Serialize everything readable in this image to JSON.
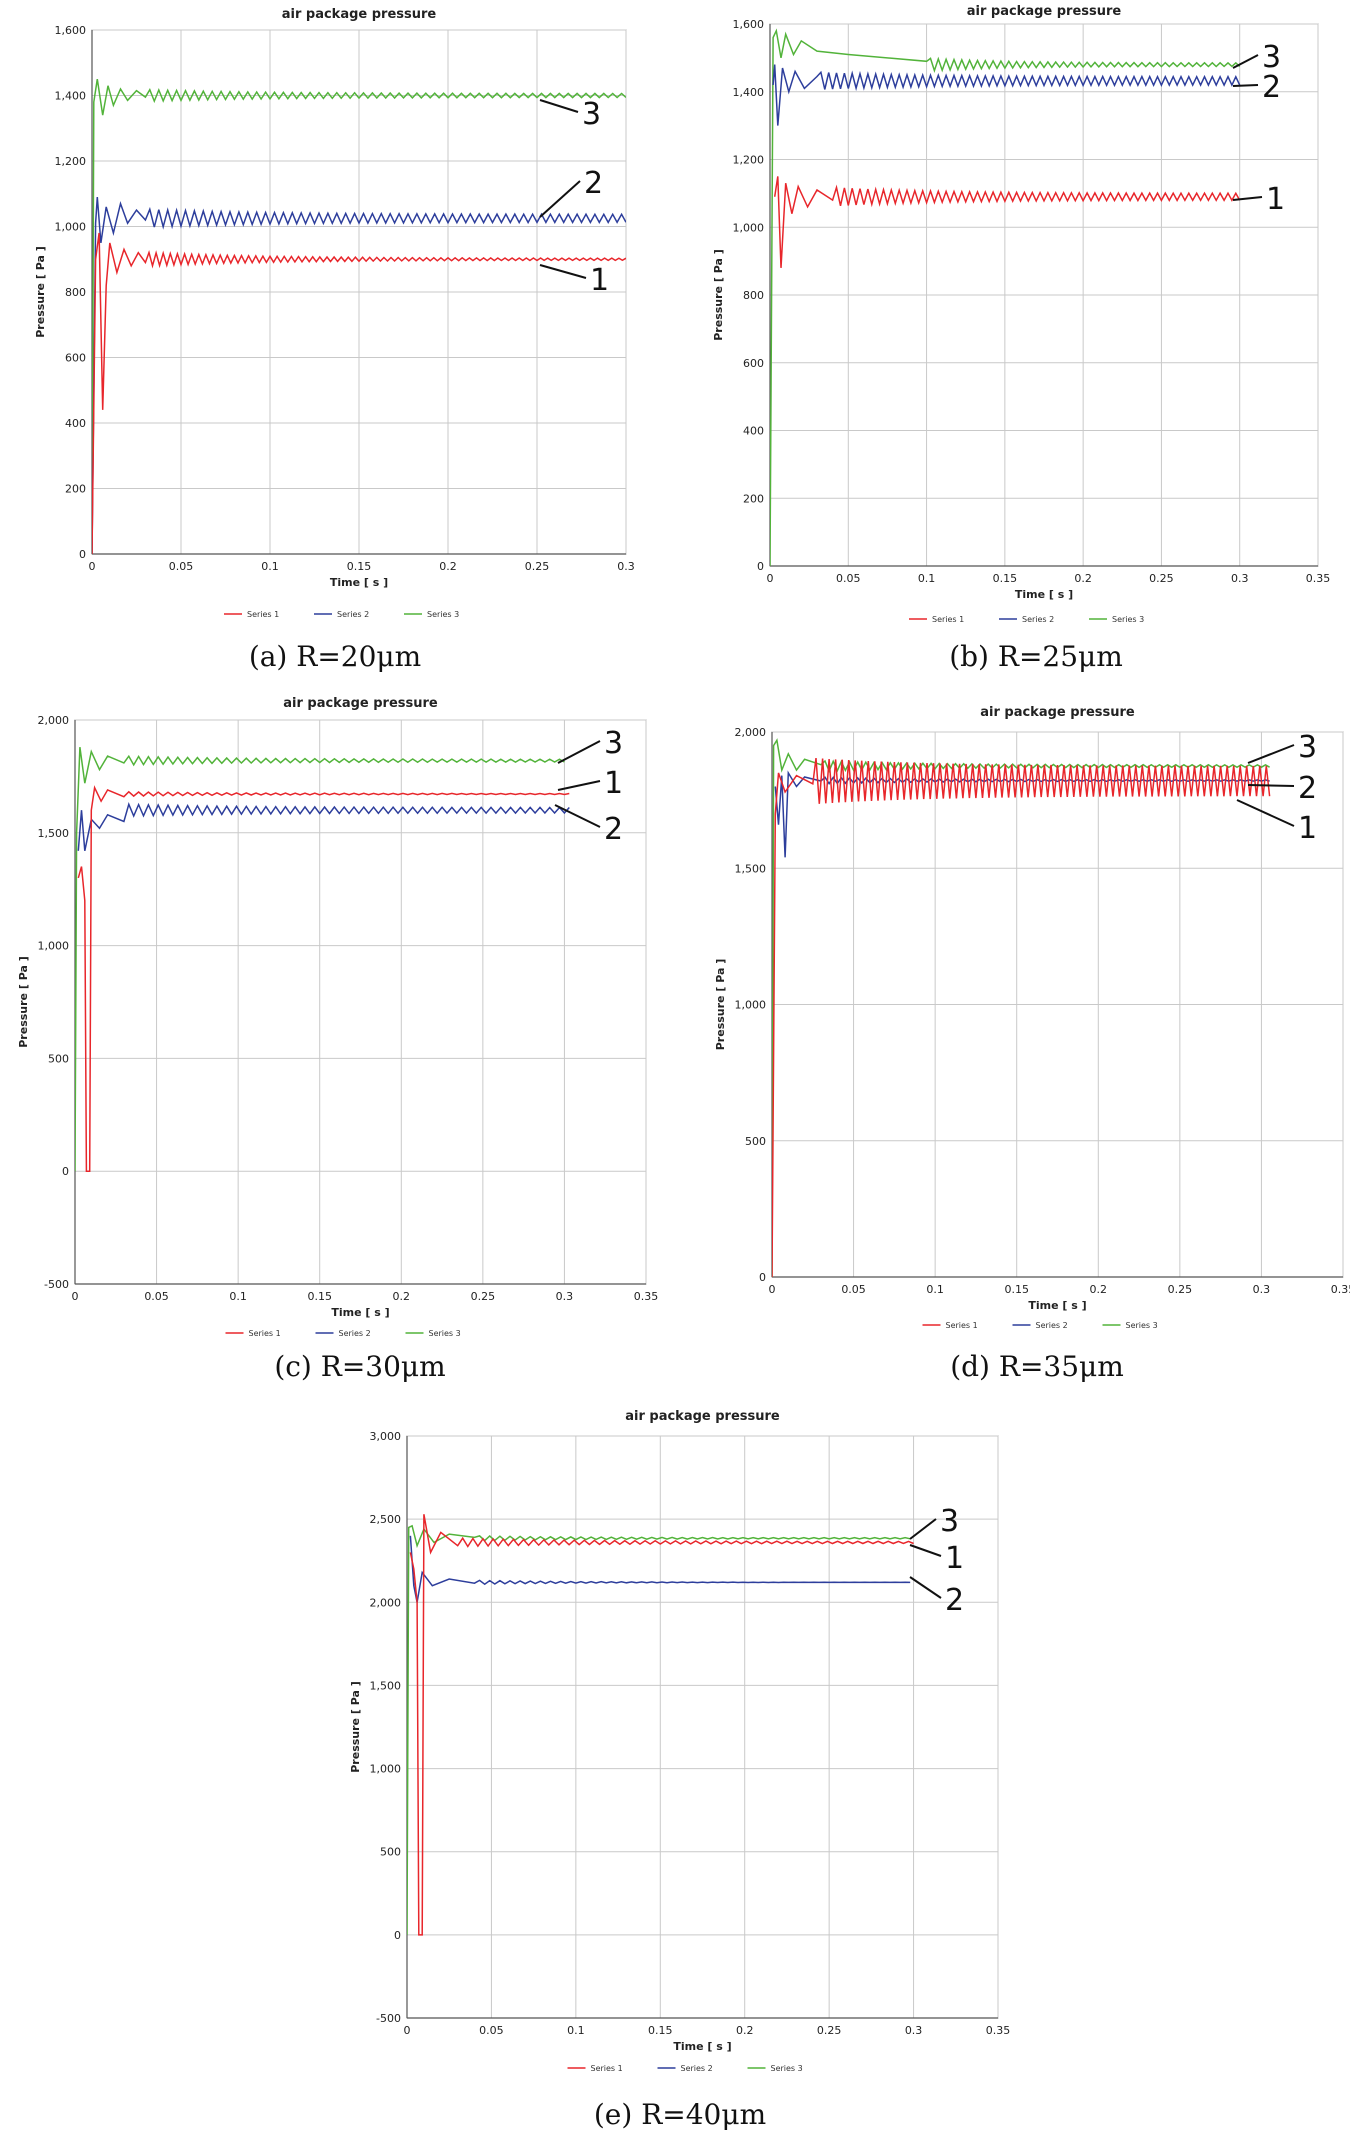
{
  "chart_data": [
    {
      "type": "line",
      "panel": "a",
      "title": "air package pressure",
      "xlabel": "Time [ s ]",
      "ylabel": "Pressure [ Pa ]",
      "xlim": [
        0,
        0.3
      ],
      "ylim": [
        0,
        1600
      ],
      "xticks": [
        0,
        0.05,
        0.1,
        0.15,
        0.2,
        0.25,
        0.3
      ],
      "xtick_labels": [
        "0",
        "0.05",
        "0.1",
        "0.15",
        "0.2",
        "0.25",
        "0.3"
      ],
      "yticks": [
        0,
        200,
        400,
        600,
        800,
        1000,
        1200,
        1400,
        1600
      ],
      "ytick_labels": [
        "0",
        "200",
        "400",
        "600",
        "800",
        "1,000",
        "1,200",
        "1,400",
        "1,600"
      ],
      "caption": "(a) R=20μm",
      "series": [
        {
          "name": "Series 1",
          "color": "#e8262b",
          "callout": "1",
          "steady": 900,
          "x_end": 0.3,
          "points": [
            [
              0,
              0
            ],
            [
              0.002,
              900
            ],
            [
              0.004,
              980
            ],
            [
              0.006,
              440
            ],
            [
              0.008,
              820
            ],
            [
              0.01,
              950
            ],
            [
              0.014,
              860
            ],
            [
              0.018,
              930
            ],
            [
              0.022,
              880
            ],
            [
              0.026,
              920
            ],
            [
              0.03,
              890
            ]
          ],
          "osc": {
            "amp0": 18,
            "amp1": 3,
            "period": 0.004
          }
        },
        {
          "name": "Series 2",
          "color": "#2d3e9c",
          "callout": "2",
          "steady": 1025,
          "x_end": 0.3,
          "points": [
            [
              0,
              0
            ],
            [
              0.002,
              1010
            ],
            [
              0.003,
              1090
            ],
            [
              0.005,
              950
            ],
            [
              0.008,
              1060
            ],
            [
              0.012,
              980
            ],
            [
              0.016,
              1070
            ],
            [
              0.02,
              1010
            ],
            [
              0.025,
              1050
            ],
            [
              0.03,
              1020
            ]
          ],
          "osc": {
            "amp0": 16,
            "amp1": 12,
            "period": 0.005
          }
        },
        {
          "name": "Series 3",
          "color": "#52b33a",
          "callout": "3",
          "steady": 1400,
          "x_end": 0.3,
          "points": [
            [
              0,
              0
            ],
            [
              0.001,
              1380
            ],
            [
              0.003,
              1450
            ],
            [
              0.006,
              1340
            ],
            [
              0.009,
              1430
            ],
            [
              0.012,
              1370
            ],
            [
              0.016,
              1420
            ],
            [
              0.02,
              1385
            ],
            [
              0.025,
              1415
            ],
            [
              0.03,
              1395
            ]
          ],
          "osc": {
            "amp0": 12,
            "amp1": 6,
            "period": 0.005
          }
        }
      ],
      "legend": [
        "Series 1",
        "Series 2",
        "Series 3"
      ]
    },
    {
      "type": "line",
      "panel": "b",
      "title": "air package pressure",
      "xlabel": "Time [ s ]",
      "ylabel": "Pressure [ Pa ]",
      "xlim": [
        0,
        0.35
      ],
      "ylim": [
        0,
        1600
      ],
      "xticks": [
        0,
        0.05,
        0.1,
        0.15,
        0.2,
        0.25,
        0.3,
        0.35
      ],
      "xtick_labels": [
        "0",
        "0.05",
        "0.1",
        "0.15",
        "0.2",
        "0.25",
        "0.3",
        "0.35"
      ],
      "yticks": [
        0,
        200,
        400,
        600,
        800,
        1000,
        1200,
        1400,
        1600
      ],
      "ytick_labels": [
        "0",
        "200",
        "400",
        "600",
        "800",
        "1,000",
        "1,200",
        "1,400",
        "1,600"
      ],
      "caption": "(b) R=25μm",
      "series": [
        {
          "name": "Series 1",
          "color": "#e8262b",
          "callout": "1",
          "steady": 1090,
          "x_end": 0.3,
          "points": [
            [
              0.003,
              1090
            ],
            [
              0.005,
              1150
            ],
            [
              0.007,
              880
            ],
            [
              0.01,
              1130
            ],
            [
              0.014,
              1040
            ],
            [
              0.018,
              1120
            ],
            [
              0.024,
              1060
            ],
            [
              0.03,
              1110
            ],
            [
              0.04,
              1080
            ]
          ],
          "osc": {
            "amp0": 18,
            "amp1": 10,
            "period": 0.005
          }
        },
        {
          "name": "Series 2",
          "color": "#2d3e9c",
          "callout": "2",
          "steady": 1432,
          "x_end": 0.3,
          "points": [
            [
              0.002,
              1420
            ],
            [
              0.003,
              1480
            ],
            [
              0.005,
              1300
            ],
            [
              0.008,
              1470
            ],
            [
              0.012,
              1400
            ],
            [
              0.016,
              1460
            ],
            [
              0.022,
              1410
            ],
            [
              0.03,
              1445
            ]
          ],
          "osc": {
            "amp0": 14,
            "amp1": 12,
            "period": 0.005
          }
        },
        {
          "name": "Series 3",
          "color": "#52b33a",
          "callout": "3",
          "steady": 1480,
          "x_end": 0.3,
          "points": [
            [
              0,
              0
            ],
            [
              0.002,
              1560
            ],
            [
              0.004,
              1580
            ],
            [
              0.007,
              1500
            ],
            [
              0.01,
              1570
            ],
            [
              0.015,
              1510
            ],
            [
              0.02,
              1550
            ],
            [
              0.03,
              1520
            ],
            [
              0.05,
              1510
            ],
            [
              0.1,
              1490
            ]
          ],
          "osc": {
            "amp0": 14,
            "amp1": 5,
            "period": 0.005
          }
        }
      ],
      "legend": [
        "Series 1",
        "Series 2",
        "Series 3"
      ]
    },
    {
      "type": "line",
      "panel": "c",
      "title": "air package pressure",
      "xlabel": "Time [ s ]",
      "ylabel": "Pressure [ Pa ]",
      "xlim": [
        0,
        0.35
      ],
      "ylim": [
        -500,
        2000
      ],
      "xticks": [
        0,
        0.05,
        0.1,
        0.15,
        0.2,
        0.25,
        0.3,
        0.35
      ],
      "xtick_labels": [
        "0",
        "0.05",
        "0.1",
        "0.15",
        "0.2",
        "0.25",
        "0.3",
        "0.35"
      ],
      "yticks": [
        -500,
        0,
        500,
        1000,
        1500,
        2000
      ],
      "ytick_labels": [
        "-500",
        "0",
        "500",
        "1,000",
        "1,500",
        "2,000"
      ],
      "caption": "(c) R=30μm",
      "series": [
        {
          "name": "Series 1",
          "color": "#e8262b",
          "callout": "1",
          "steady": 1672,
          "x_end": 0.305,
          "points": [
            [
              0.002,
              1300
            ],
            [
              0.004,
              1350
            ],
            [
              0.006,
              1200
            ],
            [
              0.007,
              0
            ],
            [
              0.009,
              0
            ],
            [
              0.01,
              1600
            ],
            [
              0.012,
              1700
            ],
            [
              0.016,
              1640
            ],
            [
              0.02,
              1690
            ],
            [
              0.03,
              1660
            ]
          ],
          "osc": {
            "amp0": 8,
            "amp1": 2,
            "period": 0.006
          }
        },
        {
          "name": "Series 2",
          "color": "#2d3e9c",
          "callout": "2",
          "steady": 1600,
          "x_end": 0.305,
          "points": [
            [
              0.002,
              1420
            ],
            [
              0.004,
              1600
            ],
            [
              0.006,
              1420
            ],
            [
              0.01,
              1560
            ],
            [
              0.015,
              1520
            ],
            [
              0.02,
              1580
            ],
            [
              0.03,
              1550
            ]
          ],
          "osc": {
            "amp0": 15,
            "amp1": 12,
            "period": 0.006
          }
        },
        {
          "name": "Series 3",
          "color": "#52b33a",
          "callout": "3",
          "steady": 1820,
          "x_end": 0.3,
          "points": [
            [
              0,
              0
            ],
            [
              0.001,
              1500
            ],
            [
              0.003,
              1880
            ],
            [
              0.006,
              1720
            ],
            [
              0.01,
              1860
            ],
            [
              0.015,
              1780
            ],
            [
              0.02,
              1840
            ],
            [
              0.03,
              1810
            ]
          ],
          "osc": {
            "amp0": 14,
            "amp1": 6,
            "period": 0.006
          }
        }
      ],
      "legend": [
        "Series 1",
        "Series 2",
        "Series 3"
      ]
    },
    {
      "type": "line",
      "panel": "d",
      "title": "air package pressure",
      "xlabel": "Time [ s ]",
      "ylabel": "Pressure [ Pa ]",
      "xlim": [
        0,
        0.35
      ],
      "ylim": [
        0,
        2000
      ],
      "xticks": [
        0,
        0.05,
        0.1,
        0.15,
        0.2,
        0.25,
        0.3,
        0.35
      ],
      "xtick_labels": [
        "0",
        "0.05",
        "0.1",
        "0.15",
        "0.2",
        "0.25",
        "0.3",
        "0.35"
      ],
      "yticks": [
        0,
        500,
        1000,
        1500,
        2000
      ],
      "ytick_labels": [
        "0",
        "500",
        "1,000",
        "1,500",
        "2,000"
      ],
      "caption": "(d) R=35μm",
      "series": [
        {
          "name": "Series 1",
          "color": "#e8262b",
          "callout": "1",
          "steady": 1820,
          "x_end": 0.305,
          "points": [
            [
              0,
              0
            ],
            [
              0.002,
              1700
            ],
            [
              0.004,
              1850
            ],
            [
              0.008,
              1780
            ],
            [
              0.015,
              1840
            ],
            [
              0.025,
              1810
            ]
          ],
          "osc": {
            "amp0": 30,
            "amp1": 55,
            "period": 0.004
          }
        },
        {
          "name": "Series 2",
          "color": "#2d3e9c",
          "callout": "2",
          "steady": 1822,
          "x_end": 0.305,
          "points": [
            [
              0.002,
              1800
            ],
            [
              0.004,
              1660
            ],
            [
              0.006,
              1840
            ],
            [
              0.008,
              1540
            ],
            [
              0.01,
              1850
            ],
            [
              0.015,
              1800
            ],
            [
              0.02,
              1835
            ],
            [
              0.03,
              1820
            ]
          ],
          "osc": {
            "amp0": 10,
            "amp1": 2,
            "period": 0.005
          }
        },
        {
          "name": "Series 3",
          "color": "#52b33a",
          "callout": "3",
          "steady": 1875,
          "x_end": 0.305,
          "points": [
            [
              0,
              0
            ],
            [
              0.001,
              1950
            ],
            [
              0.003,
              1970
            ],
            [
              0.006,
              1860
            ],
            [
              0.01,
              1920
            ],
            [
              0.015,
              1860
            ],
            [
              0.02,
              1900
            ],
            [
              0.03,
              1880
            ]
          ],
          "osc": {
            "amp0": 15,
            "amp1": 4,
            "period": 0.005
          }
        }
      ],
      "legend": [
        "Series 1",
        "Series 2",
        "Series 3"
      ]
    },
    {
      "type": "line",
      "panel": "e",
      "title": "air package pressure",
      "xlabel": "Time [ s ]",
      "ylabel": "Pressure [ Pa ]",
      "xlim": [
        0,
        0.35
      ],
      "ylim": [
        -500,
        3000
      ],
      "xticks": [
        0,
        0.05,
        0.1,
        0.15,
        0.2,
        0.25,
        0.3,
        0.35
      ],
      "xtick_labels": [
        "0",
        "0.05",
        "0.1",
        "0.15",
        "0.2",
        "0.25",
        "0.3",
        "0.35"
      ],
      "yticks": [
        -500,
        0,
        500,
        1000,
        1500,
        2000,
        2500,
        3000
      ],
      "ytick_labels": [
        "-500",
        "0",
        "500",
        "1,000",
        "1,500",
        "2,000",
        "2,500",
        "3,000"
      ],
      "caption": "(e) R=40μm",
      "series": [
        {
          "name": "Series 1",
          "color": "#e8262b",
          "callout": "1",
          "steady": 2360,
          "x_end": 0.3,
          "points": [
            [
              0.002,
              2300
            ],
            [
              0.004,
              2200
            ],
            [
              0.006,
              2000
            ],
            [
              0.007,
              0
            ],
            [
              0.009,
              0
            ],
            [
              0.01,
              2530
            ],
            [
              0.014,
              2300
            ],
            [
              0.02,
              2420
            ],
            [
              0.03,
              2340
            ]
          ],
          "osc": {
            "amp0": 20,
            "amp1": 6,
            "period": 0.006
          }
        },
        {
          "name": "Series 2",
          "color": "#2d3e9c",
          "callout": "2",
          "steady": 2120,
          "x_end": 0.3,
          "points": [
            [
              0.002,
              2400
            ],
            [
              0.004,
              2100
            ],
            [
              0.006,
              2000
            ],
            [
              0.009,
              2180
            ],
            [
              0.015,
              2100
            ],
            [
              0.025,
              2140
            ],
            [
              0.04,
              2115
            ]
          ],
          "osc": {
            "amp0": 12,
            "amp1": 0,
            "period": 0.006
          }
        },
        {
          "name": "Series 3",
          "color": "#52b33a",
          "callout": "3",
          "steady": 2385,
          "x_end": 0.3,
          "points": [
            [
              0,
              0
            ],
            [
              0.001,
              2450
            ],
            [
              0.003,
              2460
            ],
            [
              0.006,
              2340
            ],
            [
              0.01,
              2440
            ],
            [
              0.016,
              2360
            ],
            [
              0.025,
              2410
            ],
            [
              0.04,
              2390
            ]
          ],
          "osc": {
            "amp0": 12,
            "amp1": 3,
            "period": 0.006
          }
        }
      ],
      "legend": [
        "Series 1",
        "Series 2",
        "Series 3"
      ]
    }
  ]
}
